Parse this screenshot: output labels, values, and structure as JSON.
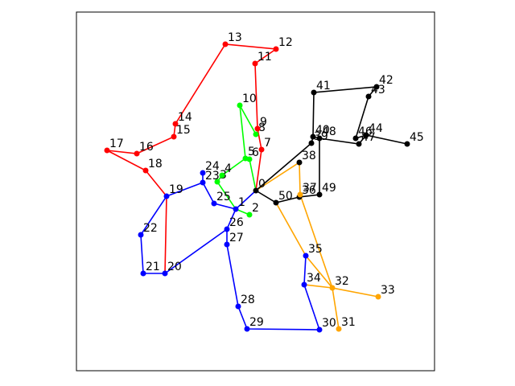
{
  "nodes": [
    {
      "label": "0",
      "color": "#000000"
    },
    {
      "label": "1",
      "color": "#0000ff"
    },
    {
      "label": "2",
      "color": "#00ff00"
    },
    {
      "label": "3",
      "color": "#00ff00"
    },
    {
      "label": "4",
      "color": "#00ff00"
    },
    {
      "label": "5",
      "color": "#00ff00"
    },
    {
      "label": "6",
      "color": "#00ff00"
    },
    {
      "label": "7",
      "color": "#ff0000"
    },
    {
      "label": "8",
      "color": "#00ff00"
    },
    {
      "label": "9",
      "color": "#ff0000"
    },
    {
      "label": "10",
      "color": "#00ff00"
    },
    {
      "label": "11",
      "color": "#ff0000"
    },
    {
      "label": "12",
      "color": "#ff0000"
    },
    {
      "label": "13",
      "color": "#ff0000"
    },
    {
      "label": "14",
      "color": "#ff0000"
    },
    {
      "label": "15",
      "color": "#ff0000"
    },
    {
      "label": "16",
      "color": "#ff0000"
    },
    {
      "label": "17",
      "color": "#ff0000"
    },
    {
      "label": "18",
      "color": "#ff0000"
    },
    {
      "label": "19",
      "color": "#0000ff"
    },
    {
      "label": "20",
      "color": "#0000ff"
    },
    {
      "label": "21",
      "color": "#0000ff"
    },
    {
      "label": "22",
      "color": "#0000ff"
    },
    {
      "label": "23",
      "color": "#0000ff"
    },
    {
      "label": "24",
      "color": "#0000ff"
    },
    {
      "label": "25",
      "color": "#0000ff"
    },
    {
      "label": "26",
      "color": "#0000ff"
    },
    {
      "label": "27",
      "color": "#0000ff"
    },
    {
      "label": "28",
      "color": "#0000ff"
    },
    {
      "label": "29",
      "color": "#0000ff"
    },
    {
      "label": "30",
      "color": "#0000ff"
    },
    {
      "label": "31",
      "color": "#ffa500"
    },
    {
      "label": "32",
      "color": "#ffa500"
    },
    {
      "label": "33",
      "color": "#ffa500"
    },
    {
      "label": "34",
      "color": "#0000ff"
    },
    {
      "label": "35",
      "color": "#0000ff"
    },
    {
      "label": "36",
      "color": "#000000"
    },
    {
      "label": "37",
      "color": "#ffa500"
    },
    {
      "label": "38",
      "color": "#000000"
    },
    {
      "label": "39",
      "color": "#000000"
    },
    {
      "label": "40",
      "color": "#000000"
    },
    {
      "label": "41",
      "color": "#000000"
    },
    {
      "label": "42",
      "color": "#000000"
    },
    {
      "label": "43",
      "color": "#000000"
    },
    {
      "label": "44",
      "color": "#000000"
    },
    {
      "label": "45",
      "color": "#000000"
    },
    {
      "label": "46",
      "color": "#000000"
    },
    {
      "label": "47",
      "color": "#000000"
    },
    {
      "label": "48",
      "color": "#000000"
    },
    {
      "label": "49",
      "color": "#000000"
    },
    {
      "label": "50",
      "color": "#000000"
    }
  ],
  "edges": [
    {
      "color": "#ff0000",
      "path": [
        0,
        7,
        9,
        11,
        12,
        13,
        14,
        15,
        16,
        17,
        18,
        19,
        20
      ]
    },
    {
      "color": "#00ff00",
      "path": [
        8,
        10,
        5,
        6,
        0
      ]
    },
    {
      "color": "#00ff00",
      "path": [
        5,
        4,
        3,
        1,
        2
      ]
    },
    {
      "color": "#0000ff",
      "path": [
        0,
        1,
        25,
        23,
        24
      ]
    },
    {
      "color": "#0000ff",
      "path": [
        23,
        19,
        22,
        21,
        20,
        26,
        1
      ]
    },
    {
      "color": "#0000ff",
      "path": [
        26,
        27,
        28,
        29,
        30,
        34,
        35
      ]
    },
    {
      "color": "#ffa500",
      "path": [
        0,
        38,
        37,
        32,
        33
      ]
    },
    {
      "color": "#ffa500",
      "path": [
        50,
        35,
        32,
        31
      ]
    },
    {
      "color": "#ffa500",
      "path": [
        34,
        32
      ]
    },
    {
      "color": "#000000",
      "path": [
        0,
        50,
        36,
        49,
        48,
        47,
        44,
        45
      ]
    },
    {
      "color": "#000000",
      "path": [
        0,
        39,
        40,
        41,
        42,
        43,
        46,
        44
      ]
    },
    {
      "color": "#000000",
      "path": [
        40,
        48
      ]
    }
  ]
}
